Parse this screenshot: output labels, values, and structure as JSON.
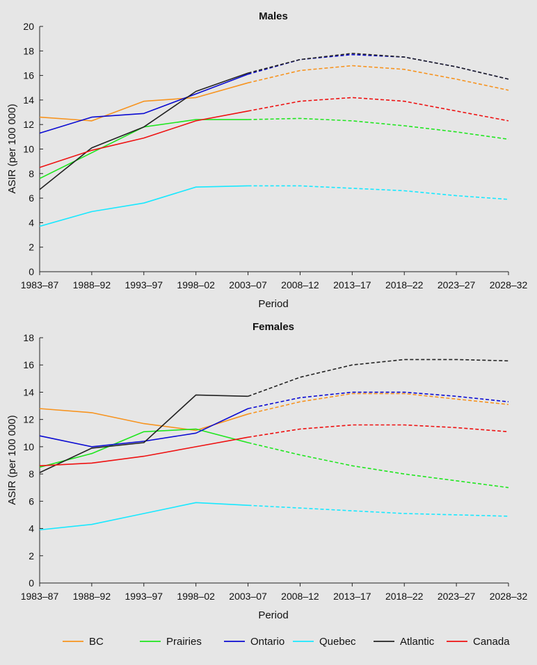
{
  "chart_data": [
    {
      "type": "line",
      "title": "Males",
      "xlabel": "Period",
      "ylabel": "ASIR (per 100 000)",
      "ylim": [
        0,
        20
      ],
      "yticks": [
        "0",
        "2",
        "4",
        "6",
        "8",
        "10",
        "12",
        "14",
        "16",
        "18",
        "20"
      ],
      "categories": [
        "1983–87",
        "1988–92",
        "1993–97",
        "1998–02",
        "2003–07",
        "2008–12",
        "2013–17",
        "2018–22",
        "2023–27",
        "2028–32"
      ],
      "observed_through": "2003–07",
      "series": [
        {
          "name": "BC",
          "color": "#f7931e",
          "values": [
            12.6,
            12.3,
            13.9,
            14.2,
            15.4,
            16.4,
            16.8,
            16.5,
            15.7,
            14.8
          ]
        },
        {
          "name": "Prairies",
          "color": "#1ee61e",
          "values": [
            7.6,
            9.7,
            11.8,
            12.4,
            12.4,
            12.5,
            12.3,
            11.9,
            11.4,
            10.8
          ]
        },
        {
          "name": "Ontario",
          "color": "#0a0ad2",
          "values": [
            11.3,
            12.6,
            12.9,
            14.5,
            16.1,
            17.3,
            17.7,
            17.5,
            16.7,
            15.7
          ]
        },
        {
          "name": "Quebec",
          "color": "#17e8ff",
          "values": [
            3.7,
            4.9,
            5.6,
            6.9,
            7.0,
            7.0,
            6.8,
            6.6,
            6.2,
            5.9
          ]
        },
        {
          "name": "Atlantic",
          "color": "#222222",
          "values": [
            6.7,
            10.1,
            11.8,
            14.7,
            16.2,
            17.3,
            17.8,
            17.5,
            16.7,
            15.7
          ]
        },
        {
          "name": "Canada",
          "color": "#ee1111",
          "values": [
            8.5,
            9.9,
            10.9,
            12.3,
            13.1,
            13.9,
            14.2,
            13.9,
            13.1,
            12.3
          ]
        }
      ]
    },
    {
      "type": "line",
      "title": "Females",
      "xlabel": "Period",
      "ylabel": "ASIR (per 100 000)",
      "ylim": [
        0,
        18
      ],
      "yticks": [
        "0",
        "2",
        "4",
        "6",
        "8",
        "10",
        "12",
        "14",
        "16",
        "18"
      ],
      "categories": [
        "1983–87",
        "1988–92",
        "1993–97",
        "1998–02",
        "2003–07",
        "2008–12",
        "2013–17",
        "2018–22",
        "2023–27",
        "2028–32"
      ],
      "observed_through": "2003–07",
      "series": [
        {
          "name": "BC",
          "color": "#f7931e",
          "values": [
            12.8,
            12.5,
            11.7,
            11.2,
            12.4,
            13.3,
            13.9,
            13.9,
            13.5,
            13.1
          ]
        },
        {
          "name": "Prairies",
          "color": "#1ee61e",
          "values": [
            8.5,
            9.5,
            11.1,
            11.3,
            10.3,
            9.4,
            8.6,
            8.0,
            7.5,
            7.0
          ]
        },
        {
          "name": "Ontario",
          "color": "#0a0ad2",
          "values": [
            10.8,
            10.0,
            10.4,
            11.0,
            12.8,
            13.6,
            14.0,
            14.0,
            13.7,
            13.3
          ]
        },
        {
          "name": "Quebec",
          "color": "#17e8ff",
          "values": [
            3.9,
            4.3,
            5.1,
            5.9,
            5.7,
            5.5,
            5.3,
            5.1,
            5.0,
            4.9
          ]
        },
        {
          "name": "Atlantic",
          "color": "#222222",
          "values": [
            8.1,
            9.9,
            10.3,
            13.8,
            13.7,
            15.1,
            16.0,
            16.4,
            16.4,
            16.3
          ]
        },
        {
          "name": "Canada",
          "color": "#ee1111",
          "values": [
            8.6,
            8.8,
            9.3,
            10.0,
            10.7,
            11.3,
            11.6,
            11.6,
            11.4,
            11.1
          ]
        }
      ]
    }
  ]
}
